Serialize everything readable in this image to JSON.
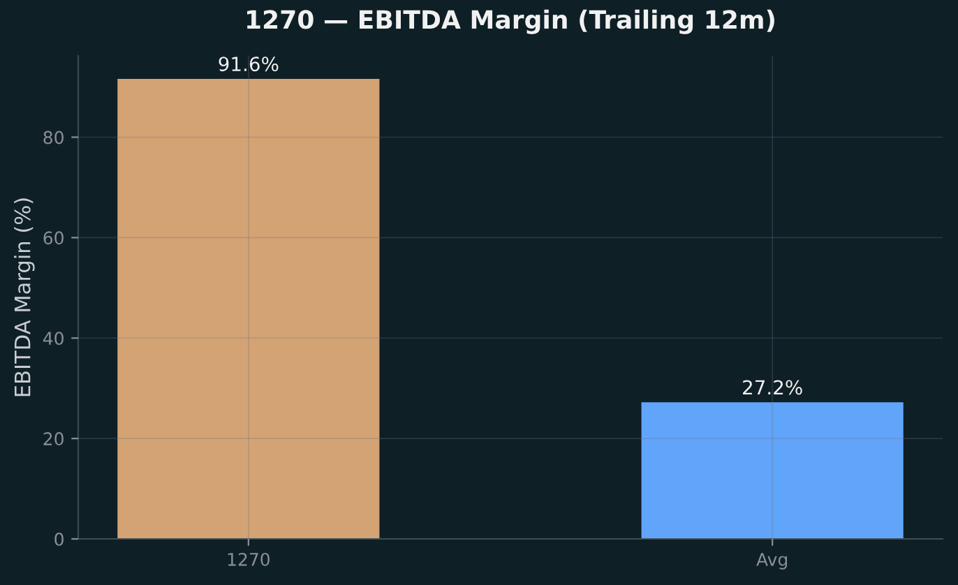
{
  "chart_data": {
    "type": "bar",
    "title": "1270 — EBITDA Margin (Trailing 12m)",
    "ylabel": "EBITDA Margin (%)",
    "categories": [
      "1270",
      "Avg"
    ],
    "values": [
      91.6,
      27.2
    ],
    "colors": [
      "#d4a373",
      "#60a5fa"
    ],
    "value_labels": [
      "91.6%",
      "27.2%"
    ],
    "ylim": [
      0,
      96.2
    ],
    "yticks": [
      0,
      20,
      40,
      60,
      80
    ],
    "grid": true
  }
}
